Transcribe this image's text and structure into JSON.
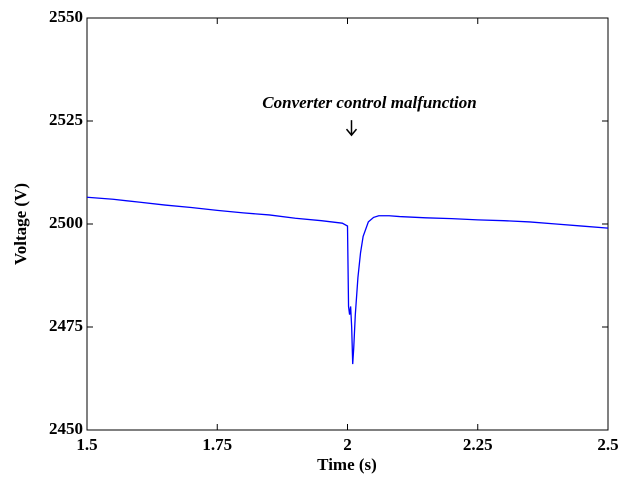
{
  "chart_data": {
    "type": "line",
    "xlabel": "Time (s)",
    "ylabel": "Voltage (V)",
    "annotation": {
      "text": "Converter control malfunction",
      "x": 2.0,
      "y": 2532
    },
    "x": [
      1.5,
      1.55,
      1.6,
      1.65,
      1.7,
      1.75,
      1.8,
      1.85,
      1.9,
      1.95,
      1.99,
      2.0,
      2.002,
      2.004,
      2.006,
      2.008,
      2.01,
      2.012,
      2.015,
      2.02,
      2.025,
      2.03,
      2.04,
      2.05,
      2.06,
      2.08,
      2.1,
      2.15,
      2.2,
      2.25,
      2.3,
      2.35,
      2.4,
      2.45,
      2.5
    ],
    "series": [
      {
        "name": "Voltage",
        "color": "#0000ff",
        "values": [
          2506.5,
          2506,
          2505.3,
          2504.6,
          2504,
          2503.3,
          2502.7,
          2502.2,
          2501.4,
          2500.8,
          2500.2,
          2499.5,
          2480,
          2478,
          2480,
          2475,
          2466,
          2470,
          2478,
          2487,
          2493,
          2497,
          2500.5,
          2501.6,
          2502,
          2502,
          2501.8,
          2501.5,
          2501.3,
          2501,
          2500.8,
          2500.5,
          2500,
          2499.5,
          2499
        ]
      }
    ],
    "xlim": [
      1.5,
      2.5
    ],
    "xticks": [
      1.5,
      1.75,
      2,
      2.25,
      2.5
    ],
    "ylim": [
      2450,
      2550
    ],
    "yticks": [
      2450,
      2475,
      2500,
      2525,
      2550
    ]
  }
}
